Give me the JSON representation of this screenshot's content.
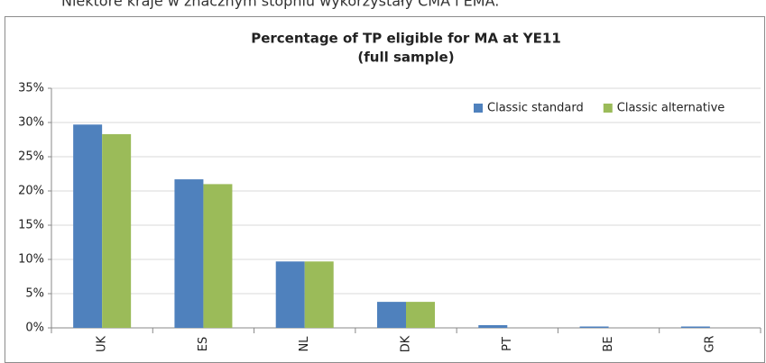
{
  "caption": "Niektóre kraje w znacznym stopniu wykorzystały CMA i EMA.",
  "chart_data": {
    "type": "bar",
    "title": "Percentage of TP eligible for MA at YE11",
    "subtitle": "(full sample)",
    "categories": [
      "UK",
      "ES",
      "NL",
      "DK",
      "PT",
      "BE",
      "GR"
    ],
    "series": [
      {
        "name": "Classic standard",
        "color": "#4f81bd",
        "values": [
          29.7,
          21.7,
          9.7,
          3.8,
          0.4,
          0.2,
          0.2
        ]
      },
      {
        "name": "Classic alternative",
        "color": "#9bbb59",
        "values": [
          28.3,
          21.0,
          9.7,
          3.8,
          0,
          0,
          0
        ]
      }
    ],
    "ylim": [
      0,
      35
    ],
    "yticks": [
      {
        "value": 0,
        "label": "0%"
      },
      {
        "value": 5,
        "label": "5%"
      },
      {
        "value": 10,
        "label": "10%"
      },
      {
        "value": 15,
        "label": "15%"
      },
      {
        "value": 20,
        "label": "20%"
      },
      {
        "value": 25,
        "label": "25%"
      },
      {
        "value": 30,
        "label": "30%"
      },
      {
        "value": 35,
        "label": "35%"
      }
    ],
    "grid": true,
    "legend": "top-right"
  }
}
